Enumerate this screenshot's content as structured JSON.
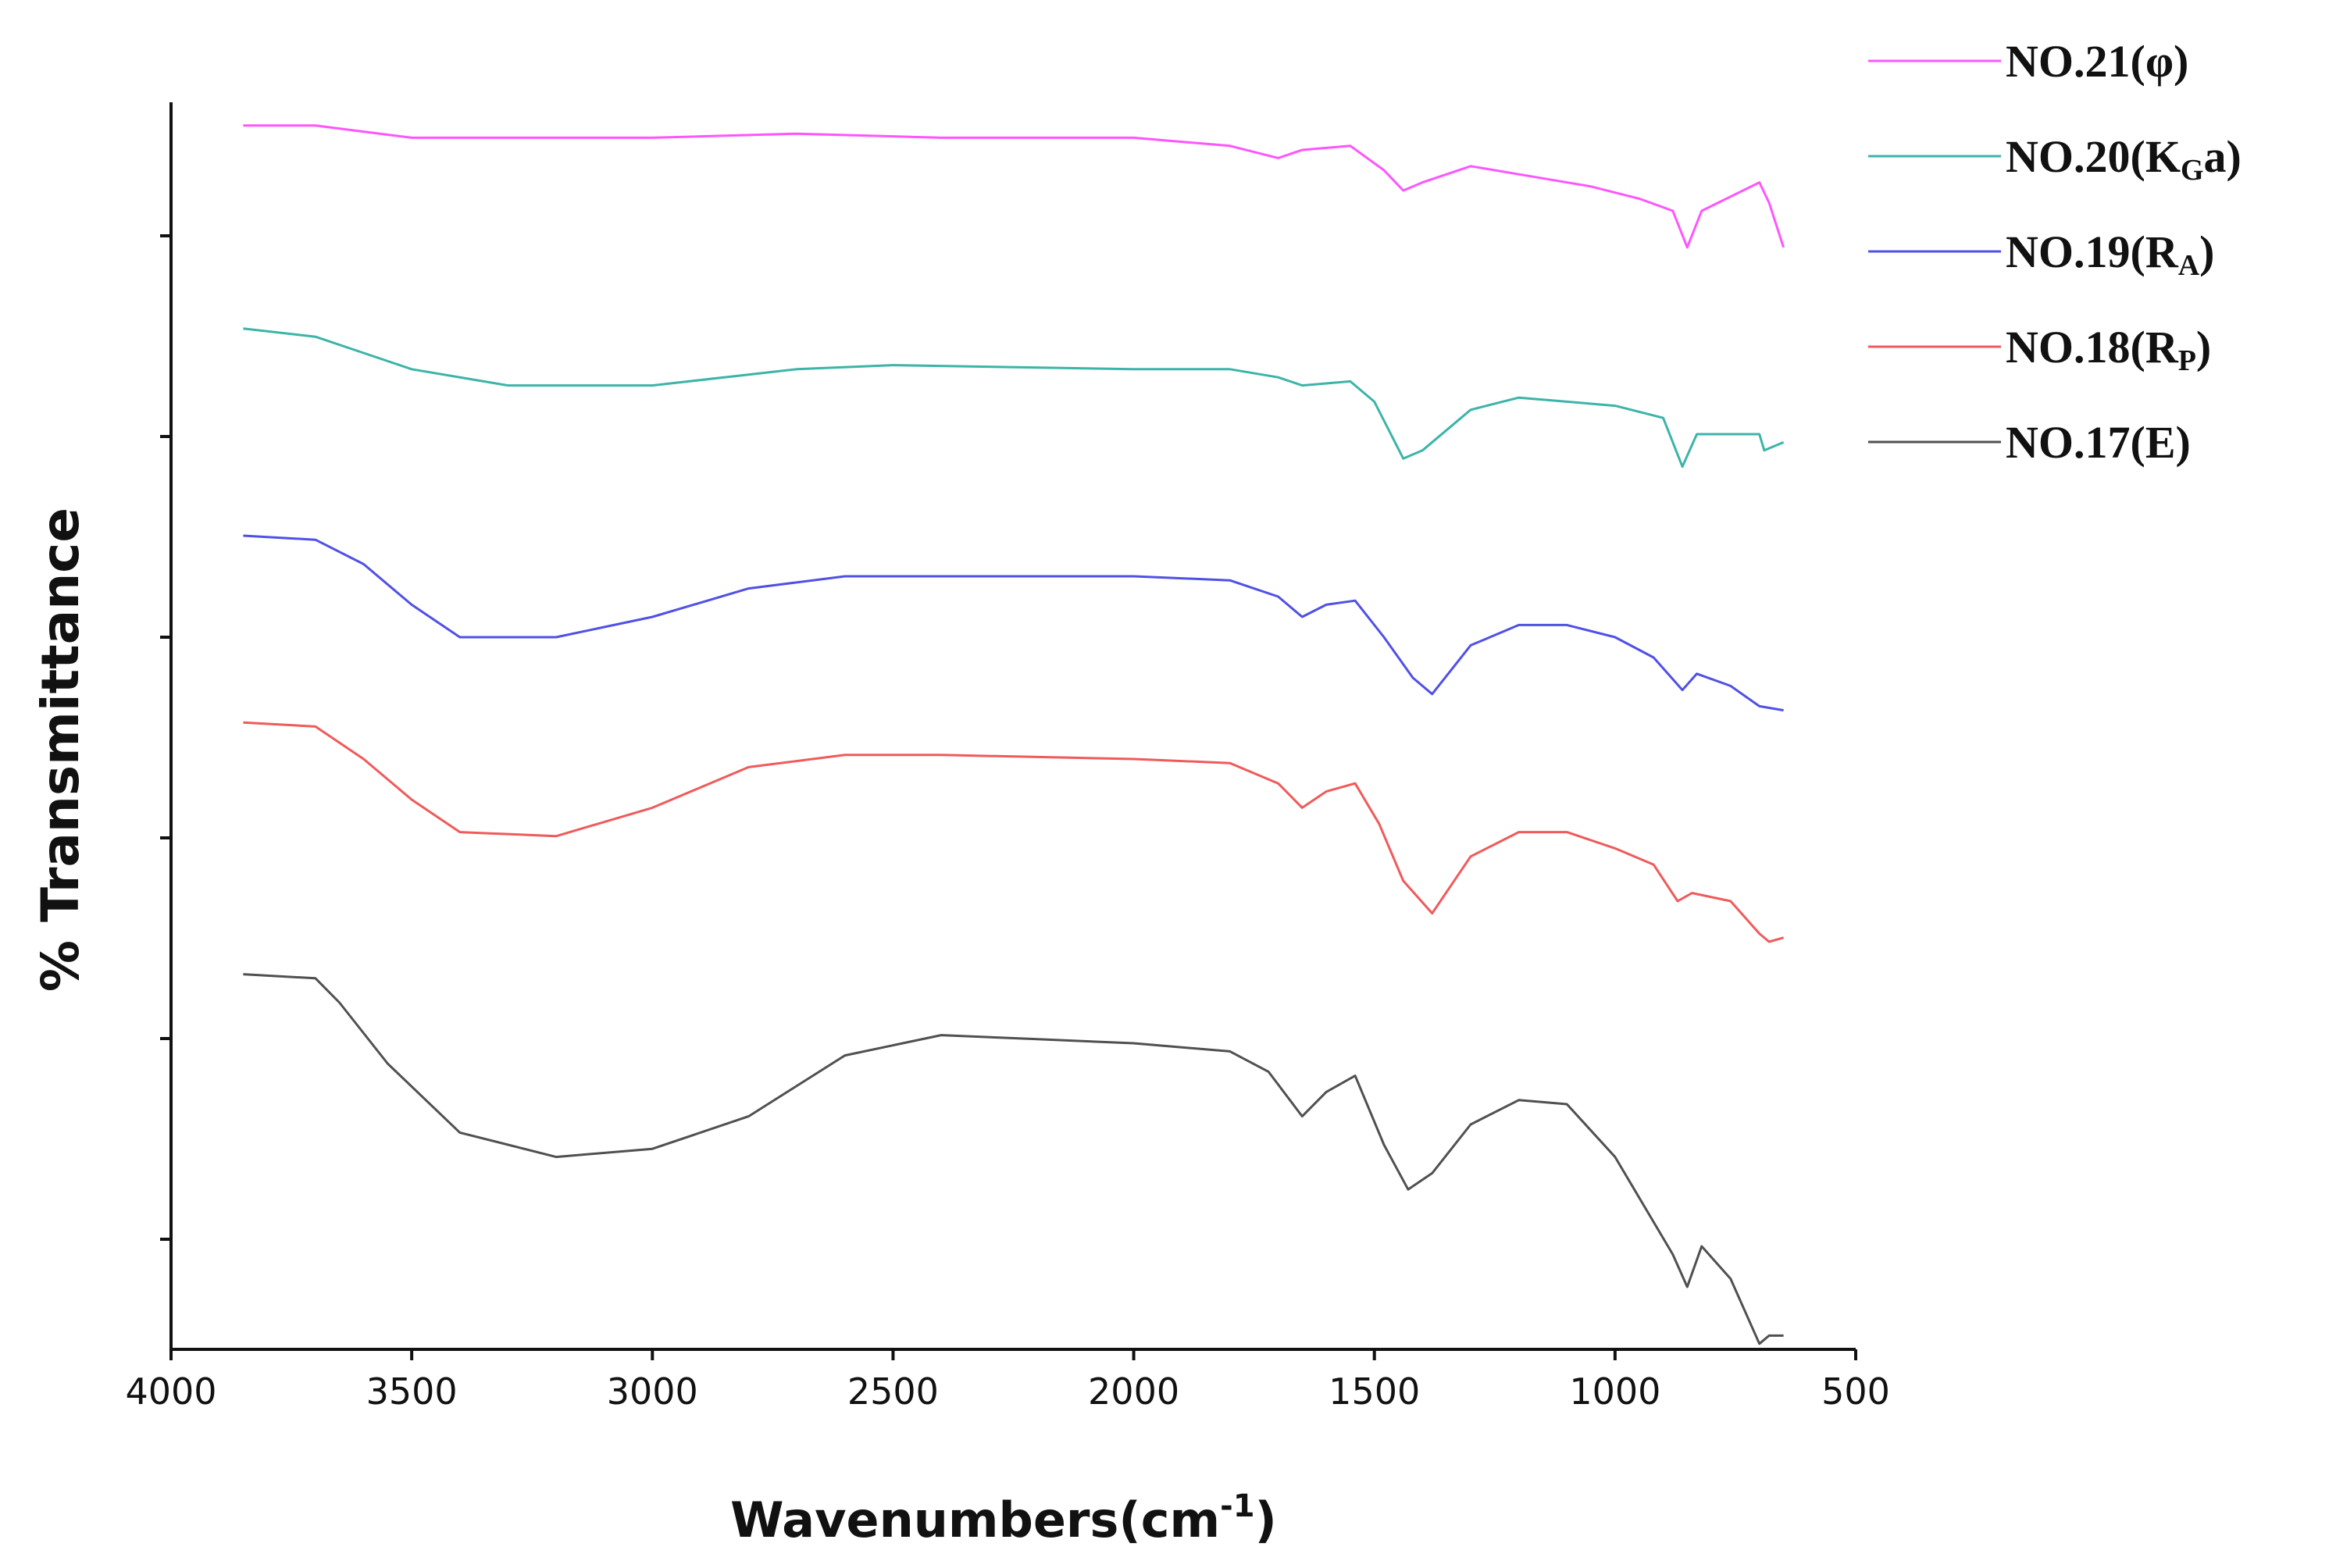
{
  "chart_data": {
    "type": "line",
    "xlabel": "Wavenumbers(cm",
    "xlabel_sup": "-1",
    "xlabel_close": ")",
    "ylabel": "% Transmittance",
    "xlim": [
      4000,
      500
    ],
    "x_reversed": true,
    "x_ticks": [
      4000,
      3500,
      3000,
      2500,
      2000,
      1500,
      1000,
      500
    ],
    "y_tick_labels_shown": false,
    "grid": false,
    "legend_position": "top-right",
    "series": [
      {
        "name": "NO.21(φ)",
        "name_main": "NO.21(φ)",
        "name_sub": "",
        "name_after": "",
        "color": "#ff55ff",
        "points": [
          [
            3850,
            0.04
          ],
          [
            3700,
            0.04
          ],
          [
            3500,
            0.07
          ],
          [
            3300,
            0.07
          ],
          [
            3000,
            0.07
          ],
          [
            2700,
            0.06
          ],
          [
            2400,
            0.07
          ],
          [
            2000,
            0.07
          ],
          [
            1800,
            0.09
          ],
          [
            1700,
            0.12
          ],
          [
            1650,
            0.1
          ],
          [
            1550,
            0.09
          ],
          [
            1480,
            0.15
          ],
          [
            1440,
            0.2
          ],
          [
            1400,
            0.18
          ],
          [
            1300,
            0.14
          ],
          [
            1200,
            0.16
          ],
          [
            1050,
            0.19
          ],
          [
            950,
            0.22
          ],
          [
            880,
            0.25
          ],
          [
            850,
            0.34
          ],
          [
            820,
            0.25
          ],
          [
            700,
            0.18
          ],
          [
            680,
            0.23
          ],
          [
            650,
            0.34
          ]
        ]
      },
      {
        "name": "NO.20(KGa)",
        "name_main": "NO.20(K",
        "name_sub": "G",
        "name_after": "a)",
        "color": "#3cb4a8",
        "points": [
          [
            3850,
            0.54
          ],
          [
            3700,
            0.56
          ],
          [
            3600,
            0.6
          ],
          [
            3500,
            0.64
          ],
          [
            3300,
            0.68
          ],
          [
            3000,
            0.68
          ],
          [
            2700,
            0.64
          ],
          [
            2500,
            0.63
          ],
          [
            2000,
            0.64
          ],
          [
            1800,
            0.64
          ],
          [
            1700,
            0.66
          ],
          [
            1650,
            0.68
          ],
          [
            1550,
            0.67
          ],
          [
            1500,
            0.72
          ],
          [
            1440,
            0.86
          ],
          [
            1400,
            0.84
          ],
          [
            1300,
            0.74
          ],
          [
            1200,
            0.71
          ],
          [
            1100,
            0.72
          ],
          [
            1000,
            0.73
          ],
          [
            900,
            0.76
          ],
          [
            860,
            0.88
          ],
          [
            830,
            0.8
          ],
          [
            700,
            0.8
          ],
          [
            690,
            0.84
          ],
          [
            650,
            0.82
          ]
        ]
      },
      {
        "name": "NO.19(RA)",
        "name_main": "NO.19(R",
        "name_sub": "A",
        "name_after": ")",
        "color": "#5050e6",
        "points": [
          [
            3850,
            1.05
          ],
          [
            3700,
            1.06
          ],
          [
            3600,
            1.12
          ],
          [
            3500,
            1.22
          ],
          [
            3400,
            1.3
          ],
          [
            3200,
            1.3
          ],
          [
            3000,
            1.25
          ],
          [
            2800,
            1.18
          ],
          [
            2600,
            1.15
          ],
          [
            2400,
            1.15
          ],
          [
            2000,
            1.15
          ],
          [
            1800,
            1.16
          ],
          [
            1700,
            1.2
          ],
          [
            1650,
            1.25
          ],
          [
            1600,
            1.22
          ],
          [
            1540,
            1.21
          ],
          [
            1480,
            1.3
          ],
          [
            1420,
            1.4
          ],
          [
            1380,
            1.44
          ],
          [
            1300,
            1.32
          ],
          [
            1200,
            1.27
          ],
          [
            1100,
            1.27
          ],
          [
            1000,
            1.3
          ],
          [
            920,
            1.35
          ],
          [
            860,
            1.43
          ],
          [
            830,
            1.39
          ],
          [
            760,
            1.42
          ],
          [
            700,
            1.47
          ],
          [
            650,
            1.48
          ]
        ]
      },
      {
        "name": "NO.18(RP)",
        "name_main": "NO.18(R",
        "name_sub": "P",
        "name_after": ")",
        "color": "#f05a5a",
        "points": [
          [
            3850,
            1.51
          ],
          [
            3700,
            1.52
          ],
          [
            3600,
            1.6
          ],
          [
            3500,
            1.7
          ],
          [
            3400,
            1.78
          ],
          [
            3200,
            1.79
          ],
          [
            3000,
            1.72
          ],
          [
            2800,
            1.62
          ],
          [
            2600,
            1.59
          ],
          [
            2400,
            1.59
          ],
          [
            2000,
            1.6
          ],
          [
            1800,
            1.61
          ],
          [
            1700,
            1.66
          ],
          [
            1650,
            1.72
          ],
          [
            1600,
            1.68
          ],
          [
            1540,
            1.66
          ],
          [
            1490,
            1.76
          ],
          [
            1440,
            1.9
          ],
          [
            1380,
            1.98
          ],
          [
            1300,
            1.84
          ],
          [
            1200,
            1.78
          ],
          [
            1100,
            1.78
          ],
          [
            1000,
            1.82
          ],
          [
            920,
            1.86
          ],
          [
            870,
            1.95
          ],
          [
            840,
            1.93
          ],
          [
            760,
            1.95
          ],
          [
            700,
            2.03
          ],
          [
            680,
            2.05
          ],
          [
            650,
            2.04
          ]
        ]
      },
      {
        "name": "NO.17(E)",
        "name_main": "NO.17(E)",
        "name_sub": "",
        "name_after": "",
        "color": "#505050",
        "points": [
          [
            3850,
            2.13
          ],
          [
            3700,
            2.14
          ],
          [
            3650,
            2.2
          ],
          [
            3550,
            2.35
          ],
          [
            3400,
            2.52
          ],
          [
            3200,
            2.58
          ],
          [
            3000,
            2.56
          ],
          [
            2800,
            2.48
          ],
          [
            2600,
            2.33
          ],
          [
            2400,
            2.28
          ],
          [
            2200,
            2.29
          ],
          [
            2000,
            2.3
          ],
          [
            1800,
            2.32
          ],
          [
            1720,
            2.37
          ],
          [
            1650,
            2.48
          ],
          [
            1600,
            2.42
          ],
          [
            1540,
            2.38
          ],
          [
            1480,
            2.55
          ],
          [
            1430,
            2.66
          ],
          [
            1380,
            2.62
          ],
          [
            1300,
            2.5
          ],
          [
            1200,
            2.44
          ],
          [
            1100,
            2.45
          ],
          [
            1000,
            2.58
          ],
          [
            930,
            2.72
          ],
          [
            880,
            2.82
          ],
          [
            850,
            2.9
          ],
          [
            820,
            2.8
          ],
          [
            760,
            2.88
          ],
          [
            700,
            3.04
          ],
          [
            680,
            3.02
          ],
          [
            650,
            3.02
          ]
        ]
      }
    ]
  }
}
